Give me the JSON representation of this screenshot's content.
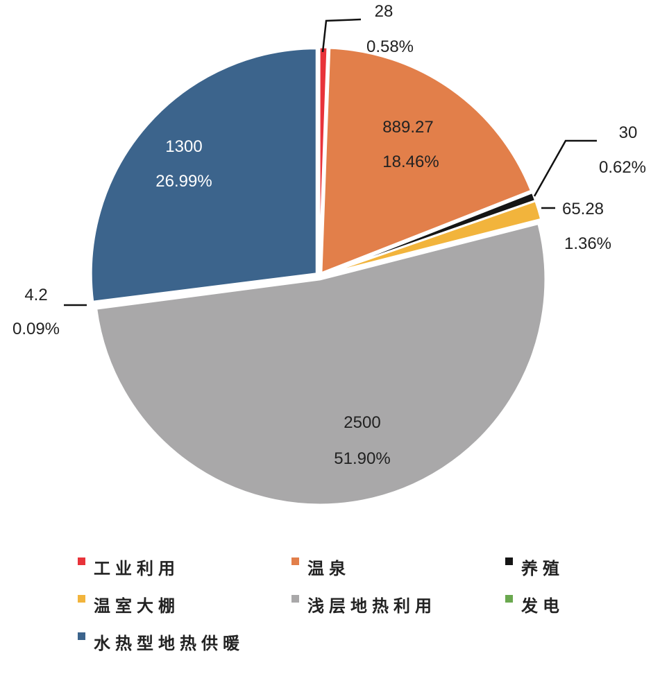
{
  "chart_data": {
    "type": "pie",
    "start": "top",
    "direction": "clockwise",
    "legend_position": "bottom",
    "slices": [
      {
        "name": "工业利用",
        "value": 28,
        "percent": "0.58%",
        "color": "#e8333a"
      },
      {
        "name": "温泉",
        "value": 889.27,
        "percent": "18.46%",
        "color": "#e27f4a"
      },
      {
        "name": "养殖",
        "value": 30,
        "percent": "0.62%",
        "color": "#151515"
      },
      {
        "name": "温室大棚",
        "value": 65.28,
        "percent": "1.36%",
        "color": "#f2b43c"
      },
      {
        "name": "浅层地热利用",
        "value": 2500,
        "percent": "51.90%",
        "color": "#a9a8a9"
      },
      {
        "name": "发电",
        "value": 4.2,
        "percent": "0.09%",
        "color": "#6aa84f"
      },
      {
        "name": "水热型地热供暖",
        "value": 1300,
        "percent": "26.99%",
        "color": "#3c648c"
      }
    ],
    "value_labels": [
      "28",
      "889.27",
      "30",
      "65.28",
      "2500",
      "4.2",
      "1300"
    ]
  }
}
